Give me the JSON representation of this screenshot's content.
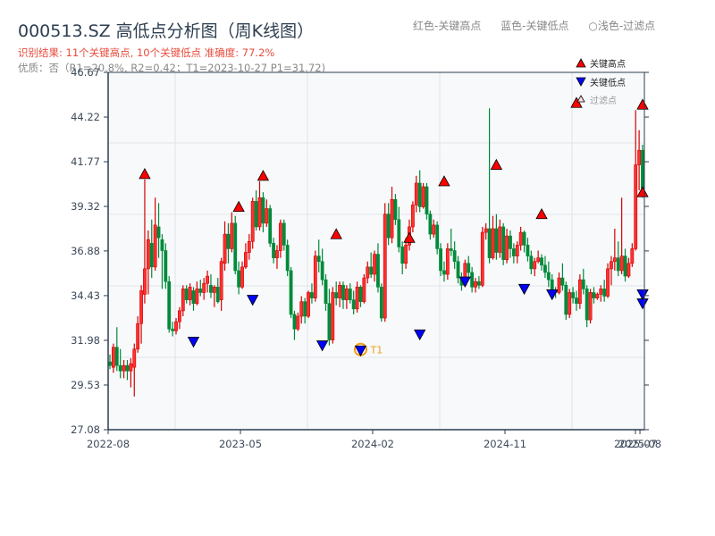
{
  "header": {
    "title": "000513.SZ 高低点分析图（周K线图）",
    "result_line": "识别结果: 11个关键高点, 10个关键低点  准确度: 77.2%",
    "quality_line": "优质：否（R1=20.8%, R2=0.42；T1=2023-10-27 P1=31.72)"
  },
  "top_legend": {
    "red": "红色-关键高点",
    "blue": "蓝色-关键低点",
    "light": "○浅色-过滤点"
  },
  "chart_legend": {
    "high": "关键高点",
    "low": "关键低点",
    "filtered": "过滤点"
  },
  "colors": {
    "up": "#d40000",
    "down": "#008a3a",
    "high_marker": "#ff0000",
    "low_marker": "#0000ff",
    "t1_ring": "#f39c12",
    "plot_bg": "#f7f9fb",
    "grid": "#e1e5ea",
    "axis": "#2c3e50"
  },
  "chart_data": {
    "type": "candlestick",
    "title": "000513.SZ 高低点分析图（周K线图）",
    "xlabel": "",
    "ylabel": "",
    "ylim": [
      27.08,
      46.67
    ],
    "y_ticks": [
      "27.08",
      "29.53",
      "31.98",
      "34.43",
      "36.88",
      "39.32",
      "41.77",
      "44.22",
      "46.67"
    ],
    "x_ticks": [
      {
        "label": "2022-08",
        "pos": 0.0
      },
      {
        "label": "2023-05",
        "pos": 0.2467
      },
      {
        "label": "2024-02",
        "pos": 0.4933
      },
      {
        "label": "2024-11",
        "pos": 0.74
      },
      {
        "label": "2025-07",
        "pos": 0.9833
      },
      {
        "label": "2025-08",
        "pos": 0.9917
      }
    ],
    "grid": true,
    "legend_position": "upper right",
    "annotation": {
      "label": "T1",
      "date": "2023-10-27",
      "price": 31.72
    },
    "weekly_ohlc_note": "approximate weekly bars [open, high, low, close], ~155 weeks from 2022-08 to 2025-08",
    "ohlc": [
      [
        30.8,
        31.2,
        30.4,
        30.6
      ],
      [
        30.5,
        31.8,
        30.2,
        31.6
      ],
      [
        31.6,
        32.7,
        30.3,
        30.6
      ],
      [
        30.6,
        31.5,
        29.9,
        30.3
      ],
      [
        30.3,
        30.9,
        29.9,
        30.6
      ],
      [
        30.6,
        30.9,
        29.8,
        30.3
      ],
      [
        30.3,
        31.0,
        29.4,
        30.7
      ],
      [
        30.5,
        31.8,
        28.9,
        31.5
      ],
      [
        31.5,
        33.3,
        31.3,
        32.9
      ],
      [
        32.9,
        35.0,
        31.8,
        34.7
      ],
      [
        34.5,
        40.8,
        34.0,
        35.9
      ],
      [
        35.9,
        38.0,
        34.5,
        37.5
      ],
      [
        37.3,
        38.6,
        35.4,
        36.0
      ],
      [
        36.0,
        39.8,
        35.8,
        38.3
      ],
      [
        38.2,
        39.5,
        36.5,
        37.6
      ],
      [
        37.5,
        37.8,
        34.8,
        36.9
      ],
      [
        36.9,
        37.3,
        34.8,
        35.2
      ],
      [
        35.2,
        35.5,
        32.4,
        32.6
      ],
      [
        32.6,
        33.0,
        32.2,
        32.5
      ],
      [
        32.5,
        33.2,
        32.3,
        33.0
      ],
      [
        33.0,
        33.8,
        32.6,
        33.6
      ],
      [
        33.6,
        35.0,
        33.3,
        34.8
      ],
      [
        34.8,
        35.0,
        34.0,
        34.2
      ],
      [
        34.2,
        35.1,
        33.9,
        34.9
      ],
      [
        34.7,
        34.9,
        33.6,
        34.0
      ],
      [
        34.0,
        35.2,
        33.9,
        34.8
      ],
      [
        34.8,
        35.3,
        34.4,
        34.6
      ],
      [
        34.6,
        35.4,
        34.2,
        35.1
      ],
      [
        35.1,
        35.8,
        34.6,
        35.5
      ],
      [
        35.0,
        35.6,
        34.3,
        34.6
      ],
      [
        34.6,
        35.0,
        33.8,
        34.9
      ],
      [
        34.9,
        35.4,
        34.0,
        34.1
      ],
      [
        34.2,
        36.5,
        33.6,
        36.3
      ],
      [
        36.2,
        38.5,
        35.8,
        37.8
      ],
      [
        37.8,
        38.4,
        36.2,
        37.0
      ],
      [
        37.0,
        39.0,
        36.8,
        38.4
      ],
      [
        38.4,
        38.8,
        35.6,
        35.8
      ],
      [
        35.8,
        36.3,
        34.5,
        34.9
      ],
      [
        34.9,
        36.3,
        34.8,
        36.0
      ],
      [
        36.0,
        37.3,
        35.9,
        36.8
      ],
      [
        36.8,
        37.8,
        36.4,
        37.4
      ],
      [
        37.4,
        39.8,
        37.0,
        39.6
      ],
      [
        39.6,
        40.2,
        38.0,
        38.2
      ],
      [
        38.2,
        40.7,
        38.0,
        39.8
      ],
      [
        39.8,
        40.1,
        37.9,
        38.4
      ],
      [
        38.4,
        39.7,
        38.2,
        39.2
      ],
      [
        39.2,
        39.4,
        37.1,
        37.3
      ],
      [
        37.3,
        37.6,
        36.2,
        36.5
      ],
      [
        36.5,
        37.2,
        35.9,
        36.9
      ],
      [
        36.9,
        38.6,
        36.5,
        38.4
      ],
      [
        38.4,
        38.6,
        36.9,
        37.2
      ],
      [
        37.2,
        37.5,
        35.5,
        35.8
      ],
      [
        35.8,
        36.0,
        33.2,
        33.4
      ],
      [
        33.4,
        33.6,
        32.0,
        32.6
      ],
      [
        32.6,
        33.5,
        32.5,
        33.3
      ],
      [
        33.3,
        34.4,
        32.9,
        34.1
      ],
      [
        34.1,
        34.3,
        32.9,
        33.3
      ],
      [
        33.3,
        34.7,
        33.2,
        34.6
      ],
      [
        34.6,
        35.1,
        34.0,
        34.3
      ],
      [
        34.3,
        36.9,
        34.1,
        36.6
      ],
      [
        36.6,
        37.5,
        35.7,
        36.3
      ],
      [
        36.3,
        37.0,
        35.0,
        35.3
      ],
      [
        35.3,
        35.6,
        33.6,
        34.0
      ],
      [
        34.0,
        34.8,
        31.7,
        32.0
      ],
      [
        32.0,
        34.9,
        31.8,
        34.6
      ],
      [
        34.6,
        35.2,
        33.9,
        34.3
      ],
      [
        34.3,
        35.2,
        33.8,
        35.0
      ],
      [
        35.0,
        35.2,
        33.7,
        34.2
      ],
      [
        34.2,
        35.0,
        33.7,
        34.8
      ],
      [
        34.8,
        35.1,
        34.0,
        34.2
      ],
      [
        34.2,
        34.7,
        33.4,
        33.7
      ],
      [
        33.7,
        35.2,
        33.5,
        34.9
      ],
      [
        34.9,
        35.0,
        33.8,
        34.1
      ],
      [
        34.1,
        35.6,
        34.0,
        35.4
      ],
      [
        35.4,
        36.3,
        35.1,
        36.0
      ],
      [
        36.0,
        36.8,
        35.4,
        35.6
      ],
      [
        35.6,
        36.9,
        35.2,
        36.7
      ],
      [
        36.7,
        37.3,
        34.6,
        34.9
      ],
      [
        34.9,
        35.1,
        33.0,
        33.2
      ],
      [
        33.2,
        39.5,
        33.0,
        38.9
      ],
      [
        38.9,
        39.5,
        37.2,
        37.6
      ],
      [
        37.6,
        40.4,
        37.3,
        39.7
      ],
      [
        39.7,
        40.0,
        38.3,
        38.6
      ],
      [
        38.6,
        39.3,
        36.8,
        37.1
      ],
      [
        37.1,
        37.4,
        35.6,
        36.2
      ],
      [
        36.2,
        37.6,
        35.9,
        37.2
      ],
      [
        37.2,
        38.6,
        36.9,
        38.2
      ],
      [
        38.2,
        39.6,
        37.9,
        39.4
      ],
      [
        39.4,
        41.0,
        39.0,
        40.6
      ],
      [
        40.6,
        41.3,
        39.0,
        39.3
      ],
      [
        39.3,
        40.6,
        39.2,
        40.4
      ],
      [
        40.4,
        40.6,
        38.6,
        38.9
      ],
      [
        38.9,
        39.1,
        37.5,
        37.8
      ],
      [
        37.8,
        38.6,
        37.6,
        38.3
      ],
      [
        38.3,
        38.5,
        36.7,
        37.0
      ],
      [
        37.0,
        37.3,
        35.5,
        35.8
      ],
      [
        35.8,
        36.3,
        35.2,
        35.6
      ],
      [
        35.6,
        37.3,
        35.3,
        37.0
      ],
      [
        37.0,
        38.1,
        36.6,
        36.9
      ],
      [
        36.9,
        37.4,
        35.9,
        36.3
      ],
      [
        36.3,
        36.6,
        35.1,
        35.4
      ],
      [
        35.4,
        35.7,
        34.7,
        35.0
      ],
      [
        35.0,
        36.4,
        34.9,
        36.2
      ],
      [
        36.2,
        36.6,
        35.4,
        35.7
      ],
      [
        35.7,
        36.0,
        34.6,
        34.9
      ],
      [
        34.9,
        35.4,
        34.6,
        35.2
      ],
      [
        35.2,
        35.5,
        34.8,
        35.0
      ],
      [
        35.0,
        38.2,
        34.9,
        37.9
      ],
      [
        37.9,
        38.4,
        37.5,
        38.1
      ],
      [
        38.1,
        44.7,
        36.2,
        36.5
      ],
      [
        36.5,
        38.8,
        36.4,
        38.1
      ],
      [
        38.1,
        38.9,
        36.4,
        36.8
      ],
      [
        36.8,
        38.6,
        36.5,
        38.2
      ],
      [
        38.2,
        38.4,
        36.1,
        36.4
      ],
      [
        36.4,
        38.1,
        36.2,
        37.7
      ],
      [
        37.7,
        38.0,
        36.5,
        37.0
      ],
      [
        37.0,
        37.3,
        36.2,
        36.6
      ],
      [
        36.6,
        37.4,
        36.2,
        37.2
      ],
      [
        37.2,
        38.2,
        36.9,
        37.9
      ],
      [
        37.9,
        38.0,
        36.8,
        37.2
      ],
      [
        37.2,
        37.6,
        36.3,
        36.6
      ],
      [
        36.6,
        36.9,
        35.6,
        35.9
      ],
      [
        35.9,
        36.5,
        35.5,
        36.3
      ],
      [
        36.3,
        36.9,
        36.2,
        36.5
      ],
      [
        36.5,
        36.7,
        35.8,
        36.1
      ],
      [
        36.1,
        36.6,
        35.4,
        35.7
      ],
      [
        35.7,
        36.3,
        34.9,
        35.3
      ],
      [
        35.3,
        35.6,
        34.4,
        34.7
      ],
      [
        34.7,
        34.9,
        34.3,
        34.6
      ],
      [
        34.6,
        35.7,
        34.5,
        35.4
      ],
      [
        35.4,
        36.2,
        34.7,
        35.0
      ],
      [
        35.0,
        35.2,
        33.1,
        33.4
      ],
      [
        33.4,
        34.8,
        33.2,
        34.6
      ],
      [
        34.6,
        34.9,
        34.0,
        34.3
      ],
      [
        34.3,
        34.7,
        33.6,
        34.0
      ],
      [
        34.0,
        35.6,
        33.7,
        35.3
      ],
      [
        35.3,
        35.9,
        34.5,
        34.8
      ],
      [
        34.8,
        35.0,
        32.7,
        33.1
      ],
      [
        33.1,
        34.8,
        32.9,
        34.6
      ],
      [
        34.6,
        34.9,
        34.0,
        34.3
      ],
      [
        34.3,
        34.6,
        34.2,
        34.5
      ],
      [
        34.5,
        35.0,
        34.1,
        34.8
      ],
      [
        34.8,
        35.3,
        34.1,
        34.4
      ],
      [
        34.4,
        36.2,
        34.3,
        35.9
      ],
      [
        35.9,
        36.6,
        35.0,
        36.3
      ],
      [
        36.3,
        38.1,
        35.8,
        36.5
      ],
      [
        36.5,
        37.4,
        35.5,
        35.8
      ],
      [
        35.8,
        39.8,
        35.6,
        36.6
      ],
      [
        36.6,
        37.0,
        35.2,
        35.5
      ],
      [
        35.5,
        36.5,
        35.4,
        36.2
      ],
      [
        36.2,
        37.3,
        36.0,
        37.0
      ],
      [
        37.0,
        44.6,
        36.9,
        41.6
      ],
      [
        41.6,
        43.5,
        40.2,
        42.4
      ],
      [
        42.4,
        42.7,
        39.8,
        40.2
      ]
    ],
    "key_highs": [
      {
        "idx": 10,
        "price": 40.8
      },
      {
        "idx": 37,
        "price": 39.0
      },
      {
        "idx": 44,
        "price": 40.7
      },
      {
        "idx": 65,
        "price": 37.5
      },
      {
        "idx": 86,
        "price": 37.3
      },
      {
        "idx": 96,
        "price": 40.4
      },
      {
        "idx": 111,
        "price": 41.3
      },
      {
        "idx": 124,
        "price": 38.6
      },
      {
        "idx": 134,
        "price": 44.7
      },
      {
        "idx": 178,
        "price": 39.8
      },
      {
        "idx": 183,
        "price": 44.6
      }
    ],
    "key_lows": [
      {
        "idx": 24,
        "price": 32.2
      },
      {
        "idx": 41,
        "price": 34.5
      },
      {
        "idx": 61,
        "price": 32.0
      },
      {
        "idx": 72,
        "price": 31.72,
        "tag": "T1"
      },
      {
        "idx": 89,
        "price": 32.6
      },
      {
        "idx": 102,
        "price": 35.5
      },
      {
        "idx": 119,
        "price": 35.1
      },
      {
        "idx": 127,
        "price": 34.8
      },
      {
        "idx": 163,
        "price": 34.3
      },
      {
        "idx": 180,
        "price": 34.8
      }
    ]
  }
}
